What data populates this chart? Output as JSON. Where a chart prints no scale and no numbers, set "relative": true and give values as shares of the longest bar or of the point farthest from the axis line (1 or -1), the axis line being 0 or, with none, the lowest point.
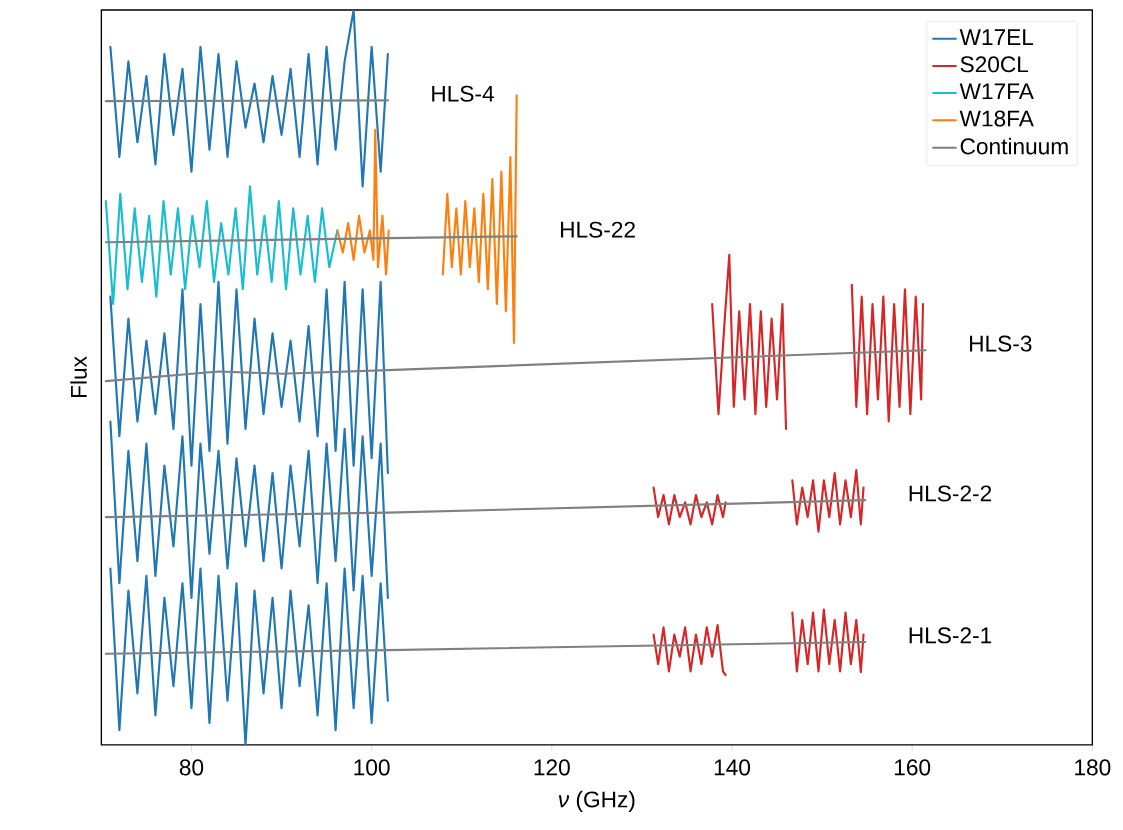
{
  "chart_data": {
    "type": "line",
    "relative": true,
    "xlabel": "*ν* (GHz)",
    "ylabel": "Flux",
    "xlim": [
      70,
      180
    ],
    "xticks": [
      80,
      100,
      120,
      140,
      160,
      180
    ],
    "legend": "top right",
    "grid": false,
    "series": [
      {
        "name": "W17EL",
        "color": "#1f77b4",
        "x": [
          71,
          72,
          73,
          74,
          75,
          76,
          77,
          78,
          79,
          80,
          81,
          82,
          83,
          84,
          85,
          86,
          87,
          88,
          89,
          90,
          91,
          92,
          93,
          94,
          95,
          96,
          97,
          98,
          99,
          100,
          101,
          101.8
        ],
        "values": [
          0.95,
          0.8,
          0.93,
          0.82,
          0.91,
          0.79,
          0.94,
          0.83,
          0.92,
          0.78,
          0.95,
          0.81,
          0.94,
          0.8,
          0.93,
          0.84,
          0.9,
          0.82,
          0.91,
          0.83,
          0.92,
          0.8,
          0.94,
          0.79,
          0.95,
          0.81,
          0.93,
          1.0,
          0.76,
          0.95,
          0.78,
          0.94
        ]
      },
      {
        "color": "#1f77b4",
        "x": [
          71,
          72,
          73,
          74,
          75,
          76,
          77,
          78,
          79,
          80,
          81,
          82,
          83,
          84,
          85,
          86,
          87,
          88,
          89,
          90,
          91,
          92,
          93,
          94,
          95,
          96,
          97,
          98,
          99,
          100,
          101,
          101.8
        ],
        "values": [
          0.61,
          0.42,
          0.58,
          0.44,
          0.55,
          0.45,
          0.56,
          0.43,
          0.62,
          0.38,
          0.6,
          0.4,
          0.63,
          0.41,
          0.62,
          0.43,
          0.58,
          0.45,
          0.56,
          0.46,
          0.55,
          0.44,
          0.57,
          0.42,
          0.62,
          0.4,
          0.63,
          0.38,
          0.62,
          0.39,
          0.63,
          0.37
        ]
      },
      {
        "color": "#1f77b4",
        "x": [
          71,
          72,
          73,
          74,
          75,
          76,
          77,
          78,
          79,
          80,
          81,
          82,
          83,
          84,
          85,
          86,
          87,
          88,
          89,
          90,
          91,
          92,
          93,
          94,
          95,
          96,
          97,
          98,
          99,
          100,
          101,
          101.8
        ],
        "values": [
          0.44,
          0.22,
          0.4,
          0.25,
          0.41,
          0.23,
          0.38,
          0.27,
          0.42,
          0.2,
          0.41,
          0.26,
          0.4,
          0.24,
          0.39,
          0.27,
          0.38,
          0.25,
          0.37,
          0.24,
          0.38,
          0.27,
          0.4,
          0.22,
          0.41,
          0.25,
          0.43,
          0.21,
          0.42,
          0.23,
          0.41,
          0.2
        ]
      },
      {
        "color": "#1f77b4",
        "x": [
          71,
          72,
          73,
          74,
          75,
          76,
          77,
          78,
          79,
          80,
          81,
          82,
          83,
          84,
          85,
          86,
          87,
          88,
          89,
          90,
          91,
          92,
          93,
          94,
          95,
          96,
          97,
          98,
          99,
          100,
          101,
          101.8
        ],
        "values": [
          0.24,
          0.02,
          0.21,
          0.07,
          0.23,
          0.04,
          0.2,
          0.08,
          0.22,
          0.05,
          0.24,
          0.03,
          0.23,
          0.06,
          0.22,
          0.0,
          0.21,
          0.07,
          0.2,
          0.05,
          0.21,
          0.08,
          0.19,
          0.04,
          0.22,
          0.02,
          0.24,
          0.05,
          0.23,
          0.03,
          0.22,
          0.06
        ]
      },
      {
        "name": "S20CL",
        "color": "#d62728",
        "x": [
          137.8,
          138.5,
          139.2,
          139.7,
          140.2,
          140.8,
          141.4,
          142,
          142.6,
          143.2,
          143.8,
          144.4,
          145,
          145.6,
          146
        ],
        "values": [
          0.6,
          0.45,
          0.58,
          0.667,
          0.46,
          0.59,
          0.47,
          0.6,
          0.45,
          0.59,
          0.46,
          0.58,
          0.47,
          0.6,
          0.43
        ]
      },
      {
        "color": "#d62728",
        "x": [
          153.3,
          153.8,
          154.4,
          155,
          155.6,
          156.2,
          156.8,
          157.4,
          158,
          158.6,
          159.2,
          159.8,
          160.4,
          161,
          161.2
        ],
        "values": [
          0.626,
          0.46,
          0.61,
          0.45,
          0.6,
          0.47,
          0.61,
          0.44,
          0.6,
          0.46,
          0.62,
          0.45,
          0.61,
          0.47,
          0.6
        ]
      },
      {
        "color": "#d62728",
        "x": [
          131.3,
          131.8,
          132.4,
          133,
          133.6,
          134.2,
          134.8,
          135.4,
          136,
          136.6,
          137.2,
          137.8,
          138.4,
          139,
          139.3
        ],
        "values": [
          0.35,
          0.31,
          0.34,
          0.3,
          0.34,
          0.31,
          0.33,
          0.3,
          0.34,
          0.31,
          0.33,
          0.3,
          0.34,
          0.31,
          0.33
        ]
      },
      {
        "color": "#d62728",
        "x": [
          146.7,
          147.2,
          147.8,
          148.4,
          149,
          149.6,
          150.2,
          150.8,
          151.4,
          152,
          152.6,
          153.2,
          153.8,
          154.3,
          154.6
        ],
        "values": [
          0.36,
          0.3,
          0.35,
          0.31,
          0.36,
          0.29,
          0.36,
          0.31,
          0.37,
          0.3,
          0.36,
          0.31,
          0.374,
          0.3,
          0.35
        ]
      },
      {
        "color": "#d62728",
        "x": [
          131.3,
          131.8,
          132.4,
          133,
          133.6,
          134.2,
          134.8,
          135.4,
          136,
          136.6,
          137.2,
          137.8,
          138.4,
          139,
          139.3
        ],
        "values": [
          0.15,
          0.11,
          0.16,
          0.1,
          0.15,
          0.12,
          0.16,
          0.1,
          0.15,
          0.11,
          0.16,
          0.12,
          0.163,
          0.1,
          0.095
        ]
      },
      {
        "color": "#d62728",
        "x": [
          146.7,
          147.2,
          147.8,
          148.4,
          149,
          149.6,
          150.2,
          150.8,
          151.4,
          152,
          152.6,
          153.2,
          153.8,
          154.3,
          154.6
        ],
        "values": [
          0.18,
          0.1,
          0.17,
          0.11,
          0.18,
          0.1,
          0.184,
          0.11,
          0.17,
          0.1,
          0.18,
          0.11,
          0.17,
          0.099,
          0.15
        ]
      },
      {
        "name": "W17FA",
        "color": "#17becf",
        "x": [
          70.5,
          71.3,
          72.1,
          72.9,
          73.7,
          74.5,
          75.3,
          76.1,
          76.9,
          77.7,
          78.5,
          79.3,
          80.1,
          80.9,
          81.7,
          82.5,
          83.3,
          84.1,
          84.9,
          85.7,
          86.5,
          87.3,
          88.1,
          88.9,
          89.7,
          90.5,
          91.3,
          92.1,
          92.9,
          93.7,
          94.5,
          95.3,
          96.2
        ],
        "values": [
          0.74,
          0.6,
          0.75,
          0.62,
          0.73,
          0.63,
          0.72,
          0.61,
          0.74,
          0.64,
          0.73,
          0.62,
          0.72,
          0.65,
          0.74,
          0.63,
          0.71,
          0.64,
          0.73,
          0.62,
          0.76,
          0.64,
          0.72,
          0.63,
          0.74,
          0.62,
          0.73,
          0.64,
          0.72,
          0.63,
          0.73,
          0.65,
          0.7
        ]
      },
      {
        "name": "W18FA",
        "color": "#ff7f0e",
        "x": [
          96.2,
          96.8,
          97.4,
          98,
          98.6,
          99.2,
          99.8,
          100.2,
          100.4,
          100.7,
          101.2,
          101.6,
          101.9
        ],
        "values": [
          0.7,
          0.67,
          0.71,
          0.66,
          0.72,
          0.67,
          0.7,
          0.66,
          0.837,
          0.65,
          0.72,
          0.64,
          0.7
        ]
      },
      {
        "color": "#ff7f0e",
        "x": [
          107.9,
          108.4,
          108.9,
          109.4,
          109.9,
          110.4,
          110.9,
          111.4,
          111.9,
          112.4,
          112.9,
          113.4,
          113.9,
          114.4,
          114.9,
          115.4,
          115.8,
          116.1
        ],
        "values": [
          0.64,
          0.75,
          0.65,
          0.73,
          0.64,
          0.74,
          0.65,
          0.73,
          0.63,
          0.75,
          0.62,
          0.77,
          0.6,
          0.78,
          0.59,
          0.8,
          0.547,
          0.884
        ]
      },
      {
        "name": "Continuum",
        "color": "#808080",
        "x": [
          70.5,
          101.8
        ],
        "values": [
          0.876,
          0.877
        ]
      },
      {
        "color": "#808080",
        "x": [
          70.5,
          116.1
        ],
        "values": [
          0.684,
          0.692
        ]
      },
      {
        "color": "#808080",
        "x": [
          70.5,
          83,
          90,
          101.8,
          161.5
        ],
        "values": [
          0.495,
          0.508,
          0.505,
          0.51,
          0.537
        ]
      },
      {
        "color": "#808080",
        "x": [
          70.5,
          101.8,
          154.8
        ],
        "values": [
          0.31,
          0.316,
          0.333
        ]
      },
      {
        "color": "#808080",
        "x": [
          70.5,
          101.8,
          154.8
        ],
        "values": [
          0.124,
          0.129,
          0.14
        ]
      }
    ],
    "annotations": [
      "HLS-4",
      "HLS-22",
      "HLS-3",
      "HLS-2-2",
      "HLS-2-1"
    ]
  }
}
